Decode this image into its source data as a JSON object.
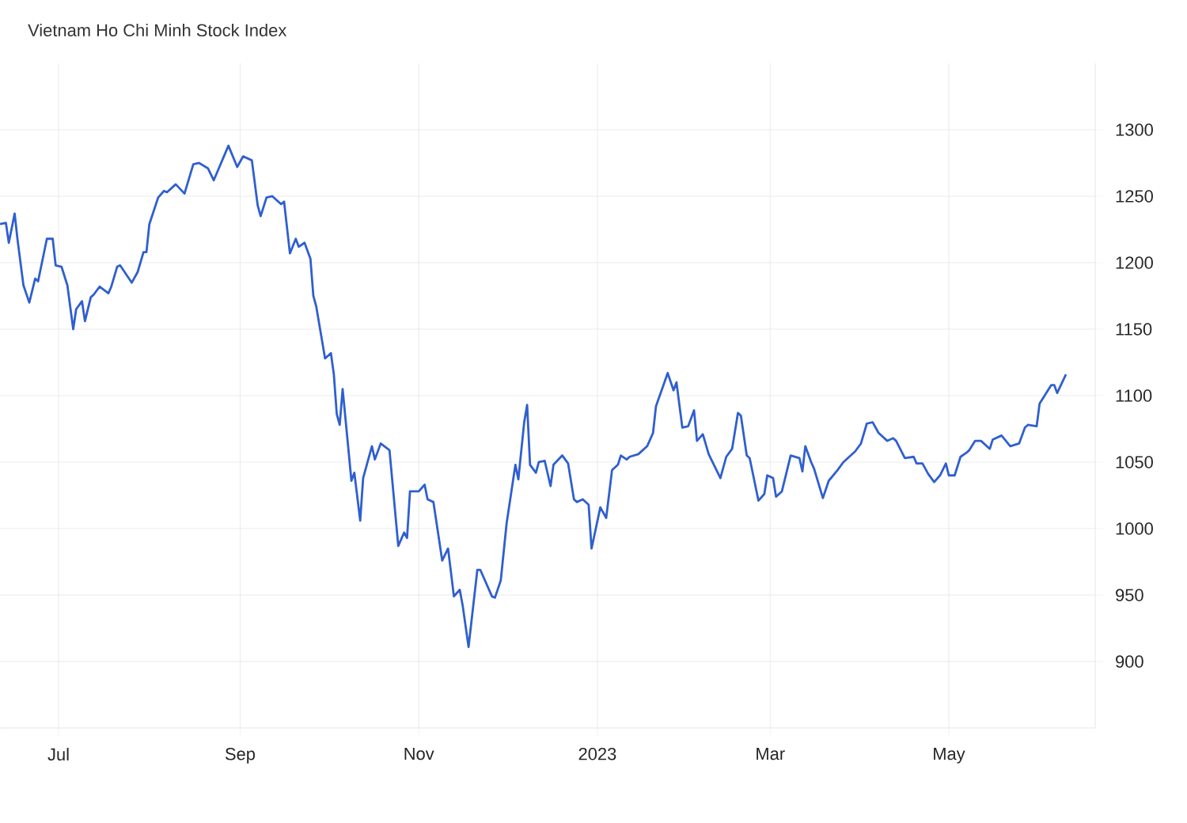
{
  "chart_data": {
    "type": "line",
    "title": "Vietnam Ho Chi Minh Stock Index",
    "color": "#2f5fd0",
    "grid": true,
    "xlim": [
      "2022-06-11",
      "2023-06-20"
    ],
    "ylim": [
      850,
      1350
    ],
    "xticks": [
      {
        "value": "2022-07-01",
        "label": "Jul"
      },
      {
        "value": "2022-09-01",
        "label": "Sep"
      },
      {
        "value": "2022-11-01",
        "label": "Nov"
      },
      {
        "value": "2023-01-01",
        "label": "2023"
      },
      {
        "value": "2023-03-01",
        "label": "Mar"
      },
      {
        "value": "2023-05-01",
        "label": "May"
      }
    ],
    "yticks": [
      900,
      950,
      1000,
      1050,
      1100,
      1150,
      1200,
      1250,
      1300
    ],
    "x": [
      "2022-06-11",
      "2022-06-13",
      "2022-06-14",
      "2022-06-16",
      "2022-06-17",
      "2022-06-19",
      "2022-06-21",
      "2022-06-23",
      "2022-06-24",
      "2022-06-27",
      "2022-06-29",
      "2022-06-30",
      "2022-07-02",
      "2022-07-04",
      "2022-07-06",
      "2022-07-07",
      "2022-07-09",
      "2022-07-10",
      "2022-07-12",
      "2022-07-13",
      "2022-07-15",
      "2022-07-18",
      "2022-07-19",
      "2022-07-21",
      "2022-07-22",
      "2022-07-26",
      "2022-07-28",
      "2022-07-30",
      "2022-07-31",
      "2022-08-01",
      "2022-08-04",
      "2022-08-06",
      "2022-08-07",
      "2022-08-10",
      "2022-08-13",
      "2022-08-16",
      "2022-08-18",
      "2022-08-21",
      "2022-08-23",
      "2022-08-28",
      "2022-08-31",
      "2022-09-02",
      "2022-09-05",
      "2022-09-07",
      "2022-09-08",
      "2022-09-10",
      "2022-09-12",
      "2022-09-15",
      "2022-09-16",
      "2022-09-18",
      "2022-09-20",
      "2022-09-21",
      "2022-09-23",
      "2022-09-25",
      "2022-09-26",
      "2022-09-27",
      "2022-09-30",
      "2022-10-02",
      "2022-10-03",
      "2022-10-04",
      "2022-10-05",
      "2022-10-06",
      "2022-10-09",
      "2022-10-10",
      "2022-10-12",
      "2022-10-13",
      "2022-10-16",
      "2022-10-17",
      "2022-10-19",
      "2022-10-22",
      "2022-10-25",
      "2022-10-27",
      "2022-10-28",
      "2022-10-29",
      "2022-11-01",
      "2022-11-03",
      "2022-11-04",
      "2022-11-06",
      "2022-11-09",
      "2022-11-11",
      "2022-11-13",
      "2022-11-15",
      "2022-11-16",
      "2022-11-18",
      "2022-11-21",
      "2022-11-22",
      "2022-11-26",
      "2022-11-27",
      "2022-11-29",
      "2022-12-01",
      "2022-12-04",
      "2022-12-05",
      "2022-12-07",
      "2022-12-08",
      "2022-12-09",
      "2022-12-11",
      "2022-12-12",
      "2022-12-14",
      "2022-12-16",
      "2022-12-17",
      "2022-12-20",
      "2022-12-22",
      "2022-12-24",
      "2022-12-25",
      "2022-12-27",
      "2022-12-29",
      "2022-12-30",
      "2023-01-02",
      "2023-01-04",
      "2023-01-06",
      "2023-01-08",
      "2023-01-09",
      "2023-01-11",
      "2023-01-12",
      "2023-01-15",
      "2023-01-18",
      "2023-01-20",
      "2023-01-21",
      "2023-01-25",
      "2023-01-27",
      "2023-01-28",
      "2023-01-30",
      "2023-02-01",
      "2023-02-03",
      "2023-02-04",
      "2023-02-06",
      "2023-02-08",
      "2023-02-12",
      "2023-02-14",
      "2023-02-16",
      "2023-02-18",
      "2023-02-19",
      "2023-02-21",
      "2023-02-22",
      "2023-02-25",
      "2023-02-27",
      "2023-02-28",
      "2023-03-02",
      "2023-03-03",
      "2023-03-05",
      "2023-03-08",
      "2023-03-11",
      "2023-03-12",
      "2023-03-13",
      "2023-03-15",
      "2023-03-16",
      "2023-03-19",
      "2023-03-21",
      "2023-03-24",
      "2023-03-26",
      "2023-03-30",
      "2023-04-01",
      "2023-04-03",
      "2023-04-05",
      "2023-04-07",
      "2023-04-10",
      "2023-04-12",
      "2023-04-13",
      "2023-04-16",
      "2023-04-19",
      "2023-04-20",
      "2023-04-22",
      "2023-04-24",
      "2023-04-26",
      "2023-04-28",
      "2023-04-30",
      "2023-05-01",
      "2023-05-03",
      "2023-05-05",
      "2023-05-07",
      "2023-05-08",
      "2023-05-10",
      "2023-05-12",
      "2023-05-15",
      "2023-05-16",
      "2023-05-19",
      "2023-05-22",
      "2023-05-25",
      "2023-05-27",
      "2023-05-28",
      "2023-05-31",
      "2023-06-01",
      "2023-06-05",
      "2023-06-06",
      "2023-06-07",
      "2023-06-10"
    ],
    "values": [
      1229,
      1230,
      1215,
      1237,
      1217,
      1183,
      1170,
      1188,
      1186,
      1218,
      1218,
      1198,
      1197,
      1183,
      1150,
      1165,
      1171,
      1156,
      1174,
      1176,
      1182,
      1177,
      1182,
      1197,
      1198,
      1185,
      1193,
      1208,
      1208,
      1229,
      1249,
      1254,
      1253,
      1259,
      1252,
      1274,
      1275,
      1271,
      1262,
      1288,
      1272,
      1280,
      1277,
      1243,
      1235,
      1249,
      1250,
      1244,
      1246,
      1207,
      1218,
      1212,
      1215,
      1203,
      1175,
      1167,
      1128,
      1132,
      1116,
      1086,
      1078,
      1105,
      1036,
      1042,
      1006,
      1038,
      1062,
      1052,
      1064,
      1059,
      987,
      997,
      993,
      1028,
      1028,
      1033,
      1022,
      1020,
      976,
      985,
      949,
      954,
      942,
      911,
      969,
      969,
      949,
      948,
      961,
      1004,
      1048,
      1037,
      1080,
      1093,
      1048,
      1042,
      1050,
      1051,
      1032,
      1048,
      1055,
      1049,
      1022,
      1020,
      1022,
      1018,
      985,
      1016,
      1008,
      1044,
      1048,
      1055,
      1052,
      1054,
      1056,
      1062,
      1072,
      1092,
      1117,
      1104,
      1110,
      1076,
      1077,
      1089,
      1066,
      1071,
      1056,
      1038,
      1054,
      1060,
      1087,
      1085,
      1055,
      1053,
      1021,
      1026,
      1040,
      1038,
      1024,
      1028,
      1055,
      1053,
      1043,
      1062,
      1050,
      1045,
      1023,
      1036,
      1044,
      1050,
      1058,
      1064,
      1079,
      1080,
      1072,
      1066,
      1068,
      1066,
      1053,
      1054,
      1049,
      1049,
      1041,
      1035,
      1040,
      1049,
      1040,
      1040,
      1054,
      1057,
      1059,
      1066,
      1066,
      1060,
      1067,
      1070,
      1062,
      1064,
      1076,
      1078,
      1077,
      1094,
      1108,
      1108,
      1102,
      1116
    ]
  }
}
